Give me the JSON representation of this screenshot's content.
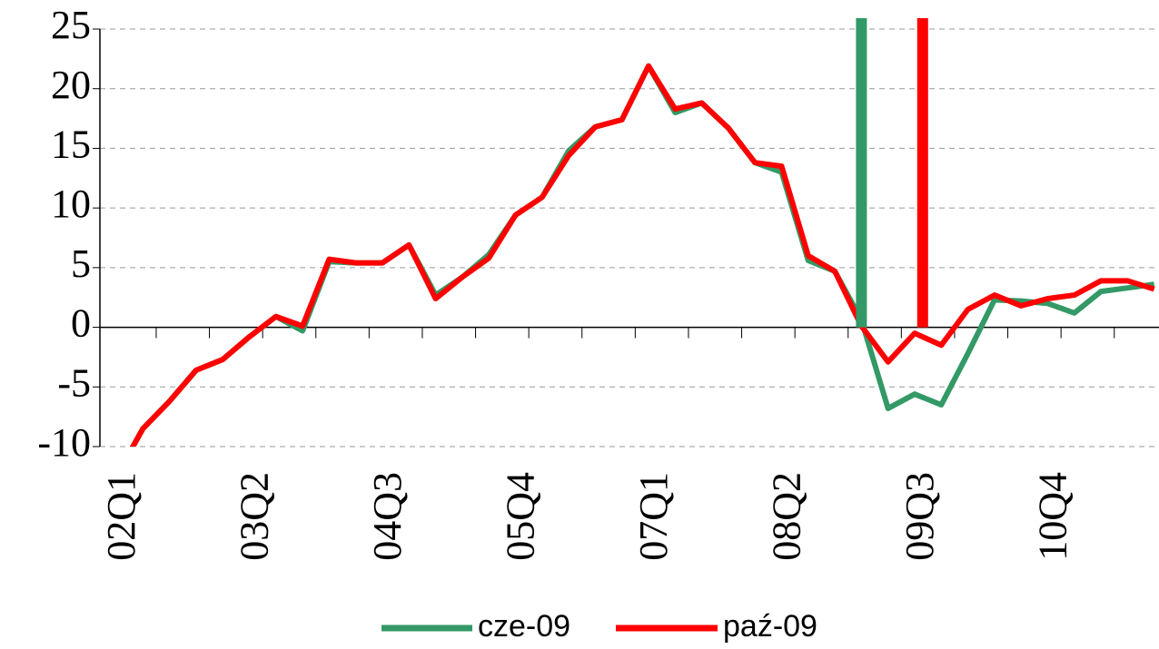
{
  "chart_data": {
    "type": "line",
    "categories": [
      "02Q1",
      null,
      null,
      null,
      null,
      "03Q2",
      null,
      null,
      null,
      null,
      "04Q3",
      null,
      null,
      null,
      null,
      "05Q4",
      null,
      null,
      null,
      null,
      "07Q1",
      null,
      null,
      null,
      null,
      "08Q2",
      null,
      null,
      null,
      null,
      "09Q3",
      null,
      null,
      null,
      null,
      "10Q4",
      null,
      null,
      null,
      null
    ],
    "series": [
      {
        "name": "cze-09",
        "color": "#339966",
        "values": [
          -12.5,
          -8.5,
          -6.2,
          -3.6,
          -2.7,
          -0.8,
          0.9,
          -0.3,
          5.5,
          5.4,
          5.4,
          6.9,
          2.7,
          4.2,
          6.1,
          9.4,
          10.9,
          14.8,
          16.8,
          17.4,
          21.9,
          18.0,
          18.8,
          16.7,
          13.8,
          13.0,
          5.6,
          4.7,
          0.6,
          -6.8,
          -5.6,
          -6.5,
          -2.2,
          2.3,
          2.2,
          2.0,
          1.2,
          3.0,
          3.3,
          3.6
        ]
      },
      {
        "name": "paź-09",
        "color": "#ff0000",
        "values": [
          -12.5,
          -8.5,
          -6.2,
          -3.6,
          -2.7,
          -0.8,
          0.9,
          0.1,
          5.7,
          5.4,
          5.4,
          6.9,
          2.4,
          4.2,
          5.8,
          9.4,
          10.9,
          14.4,
          16.8,
          17.4,
          21.9,
          18.3,
          18.8,
          16.7,
          13.8,
          13.5,
          6.0,
          4.7,
          0.1,
          -2.9,
          -0.5,
          -1.5,
          1.5,
          2.7,
          1.8,
          2.4,
          2.7,
          3.9,
          3.9,
          3.2
        ]
      }
    ],
    "vlines": [
      {
        "color": "#339966",
        "x": 28.0
      },
      {
        "color": "#ff0000",
        "x": 30.3
      }
    ],
    "ylim": [
      -10,
      25
    ],
    "yticks": [
      -10,
      -5,
      0,
      5,
      10,
      15,
      20,
      25
    ],
    "grid": true
  }
}
